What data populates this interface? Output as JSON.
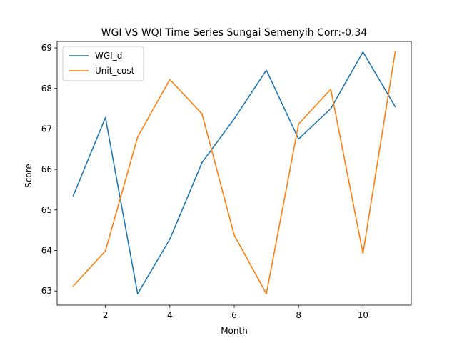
{
  "chart_data": {
    "type": "line",
    "title": "WGI VS WQI Time Series Sungai Semenyih Corr:-0.34",
    "xlabel": "Month",
    "ylabel": "Score",
    "x": [
      1,
      2,
      3,
      4,
      5,
      6,
      7,
      8,
      9,
      10,
      11
    ],
    "xlim": [
      0.5,
      11.5
    ],
    "ylim": [
      62.65,
      69.16
    ],
    "xticks": [
      2,
      4,
      6,
      8,
      10
    ],
    "yticks": [
      63,
      64,
      65,
      66,
      67,
      68,
      69
    ],
    "grid": false,
    "legend_position": "top-left",
    "series": [
      {
        "name": "WGI_d",
        "color": "#1f77b4",
        "values": [
          65.35,
          67.28,
          62.93,
          64.28,
          66.17,
          67.25,
          68.45,
          66.75,
          67.5,
          68.9,
          67.55
        ]
      },
      {
        "name": "Unit_cost",
        "color": "#ff7f0e",
        "values": [
          63.12,
          63.99,
          66.8,
          68.22,
          67.37,
          64.38,
          62.93,
          67.12,
          67.98,
          63.93,
          68.9
        ]
      }
    ]
  }
}
